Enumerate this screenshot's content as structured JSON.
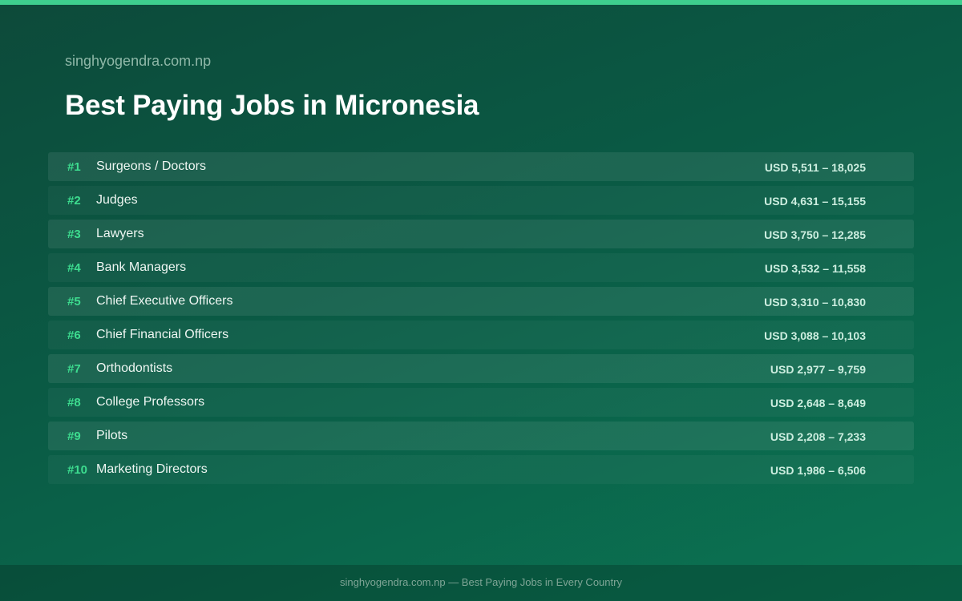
{
  "header": {
    "site": "singhyogendra.com.np",
    "title": "Best Paying Jobs in Micronesia"
  },
  "table": {
    "rows": [
      [
        "#1",
        "Surgeons / Doctors",
        "USD 5,511 – 18,025"
      ],
      [
        "#2",
        "Judges",
        "USD 4,631 – 15,155"
      ],
      [
        "#3",
        "Lawyers",
        "USD 3,750 – 12,285"
      ],
      [
        "#4",
        "Bank Managers",
        "USD 3,532 – 11,558"
      ],
      [
        "#5",
        "Chief Executive Officers",
        "USD 3,310 – 10,830"
      ],
      [
        "#6",
        "Chief Financial Officers",
        "USD 3,088 – 10,103"
      ],
      [
        "#7",
        "Orthodontists",
        "USD 2,977 – 9,759"
      ],
      [
        "#8",
        "College Professors",
        "USD 2,648 – 8,649"
      ],
      [
        "#9",
        "Pilots",
        "USD 2,208 – 7,233"
      ],
      [
        "#10",
        "Marketing Directors",
        "USD 1,986 – 6,506"
      ]
    ]
  },
  "footer": {
    "text": "singhyogendra.com.np — Best Paying Jobs in Every Country"
  }
}
